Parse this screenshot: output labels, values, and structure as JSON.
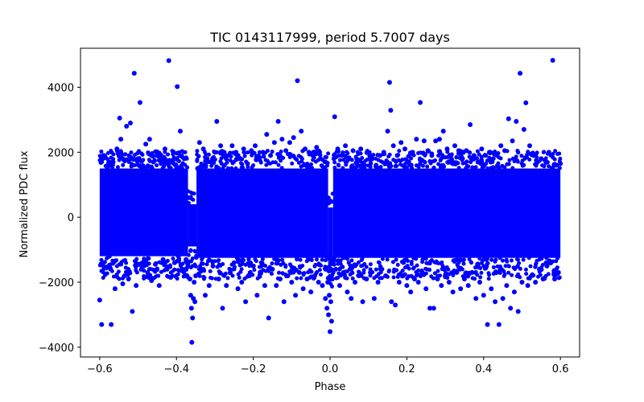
{
  "chart_data": {
    "type": "scatter",
    "title": "TIC 0143117999, period 5.7007 days",
    "xlabel": "Phase",
    "ylabel": "Normalized PDC flux",
    "xlim": [
      -0.65,
      0.65
    ],
    "ylim": [
      -4300,
      5200
    ],
    "x_ticks": [
      {
        "value": -0.6,
        "label": "−0.6"
      },
      {
        "value": -0.4,
        "label": "−0.4"
      },
      {
        "value": -0.2,
        "label": "−0.2"
      },
      {
        "value": 0.0,
        "label": "0.0"
      },
      {
        "value": 0.2,
        "label": "0.2"
      },
      {
        "value": 0.4,
        "label": "0.4"
      },
      {
        "value": 0.6,
        "label": "0.6"
      }
    ],
    "y_ticks": [
      {
        "value": -4000,
        "label": "−4000"
      },
      {
        "value": -2000,
        "label": "−2000"
      },
      {
        "value": 0,
        "label": "0"
      },
      {
        "value": 2000,
        "label": "2000"
      },
      {
        "value": 4000,
        "label": "4000"
      }
    ],
    "grid": false,
    "legend": "none",
    "marker_color": "#0000ff",
    "series": [
      {
        "color": "#0000ff",
        "points": [
          [
            -0.6,
            -2550
          ],
          [
            -0.595,
            -3300
          ],
          [
            -0.59,
            1900
          ],
          [
            -0.585,
            -1750
          ],
          [
            -0.58,
            1500
          ],
          [
            -0.575,
            -1200
          ],
          [
            -0.57,
            -3300
          ],
          [
            -0.565,
            1700
          ],
          [
            -0.56,
            -2200
          ],
          [
            -0.555,
            2100
          ],
          [
            -0.548,
            3050
          ],
          [
            -0.545,
            2400
          ],
          [
            -0.54,
            -2050
          ],
          [
            -0.535,
            -1800
          ],
          [
            -0.53,
            2800
          ],
          [
            -0.525,
            -1900
          ],
          [
            -0.52,
            2900
          ],
          [
            -0.515,
            -2900
          ],
          [
            -0.51,
            4430
          ],
          [
            -0.505,
            -2100
          ],
          [
            -0.5,
            1800
          ],
          [
            -0.495,
            3530
          ],
          [
            -0.49,
            1300
          ],
          [
            -0.485,
            -1500
          ],
          [
            -0.48,
            2250
          ],
          [
            -0.475,
            -1700
          ],
          [
            -0.47,
            2400
          ],
          [
            -0.465,
            -1950
          ],
          [
            -0.46,
            1700
          ],
          [
            -0.455,
            -1450
          ],
          [
            -0.45,
            1900
          ],
          [
            -0.445,
            -2100
          ],
          [
            -0.44,
            1650
          ],
          [
            -0.435,
            -1300
          ],
          [
            -0.43,
            2100
          ],
          [
            -0.425,
            -1600
          ],
          [
            -0.42,
            4820
          ],
          [
            -0.415,
            -1850
          ],
          [
            -0.41,
            1750
          ],
          [
            -0.405,
            -1400
          ],
          [
            -0.4,
            1500
          ],
          [
            -0.398,
            4020
          ],
          [
            -0.395,
            -1200
          ],
          [
            -0.39,
            2650
          ],
          [
            -0.385,
            -1650
          ],
          [
            -0.38,
            1800
          ],
          [
            -0.375,
            -1300
          ],
          [
            -0.372,
            -800
          ],
          [
            -0.37,
            -1500
          ],
          [
            -0.368,
            600
          ],
          [
            -0.365,
            -1900
          ],
          [
            -0.363,
            -2400
          ],
          [
            -0.361,
            -2800
          ],
          [
            -0.36,
            -3850
          ],
          [
            -0.358,
            -3100
          ],
          [
            -0.356,
            -2500
          ],
          [
            -0.354,
            -2000
          ],
          [
            -0.352,
            -2600
          ],
          [
            -0.35,
            -1800
          ],
          [
            -0.348,
            -1200
          ],
          [
            -0.345,
            1500
          ],
          [
            -0.34,
            2300
          ],
          [
            -0.335,
            -1600
          ],
          [
            -0.33,
            2100
          ],
          [
            -0.325,
            -2400
          ],
          [
            -0.32,
            1800
          ],
          [
            -0.315,
            -2100
          ],
          [
            -0.31,
            1700
          ],
          [
            -0.305,
            -1500
          ],
          [
            -0.3,
            2000
          ],
          [
            -0.295,
            2950
          ],
          [
            -0.29,
            -1900
          ],
          [
            -0.285,
            2200
          ],
          [
            -0.28,
            -2800
          ],
          [
            -0.275,
            1600
          ],
          [
            -0.27,
            -2100
          ],
          [
            -0.265,
            1900
          ],
          [
            -0.26,
            -1700
          ],
          [
            -0.255,
            2200
          ],
          [
            -0.25,
            -1400
          ],
          [
            -0.245,
            2000
          ],
          [
            -0.24,
            -2200
          ],
          [
            -0.235,
            1800
          ],
          [
            -0.23,
            -2000
          ],
          [
            -0.225,
            2100
          ],
          [
            -0.22,
            -2600
          ],
          [
            -0.215,
            1650
          ],
          [
            -0.21,
            -1800
          ],
          [
            -0.205,
            2050
          ],
          [
            -0.2,
            -1500
          ],
          [
            -0.195,
            2200
          ],
          [
            -0.19,
            -2400
          ],
          [
            -0.185,
            1800
          ],
          [
            -0.18,
            -1700
          ],
          [
            -0.175,
            2000
          ],
          [
            -0.17,
            -2100
          ],
          [
            -0.165,
            2550
          ],
          [
            -0.16,
            -3100
          ],
          [
            -0.155,
            1900
          ],
          [
            -0.15,
            -1600
          ],
          [
            -0.145,
            2300
          ],
          [
            -0.14,
            -2100
          ],
          [
            -0.135,
            2950
          ],
          [
            -0.13,
            -1900
          ],
          [
            -0.125,
            2400
          ],
          [
            -0.12,
            -2600
          ],
          [
            -0.115,
            2050
          ],
          [
            -0.11,
            -1800
          ],
          [
            -0.105,
            2300
          ],
          [
            -0.1,
            -2000
          ],
          [
            -0.095,
            2450
          ],
          [
            -0.09,
            -2400
          ],
          [
            -0.085,
            4200
          ],
          [
            -0.08,
            -1700
          ],
          [
            -0.075,
            2650
          ],
          [
            -0.07,
            -2200
          ],
          [
            -0.065,
            2100
          ],
          [
            -0.06,
            -1900
          ],
          [
            -0.055,
            2000
          ],
          [
            -0.05,
            -2300
          ],
          [
            -0.045,
            1900
          ],
          [
            -0.04,
            -1800
          ],
          [
            -0.035,
            2150
          ],
          [
            -0.03,
            -2000
          ],
          [
            -0.025,
            1800
          ],
          [
            -0.02,
            -2100
          ],
          [
            -0.015,
            1500
          ],
          [
            -0.012,
            -2500
          ],
          [
            -0.01,
            -1200
          ],
          [
            -0.008,
            -2800
          ],
          [
            -0.006,
            -2000
          ],
          [
            -0.004,
            -3000
          ],
          [
            -0.002,
            -2400
          ],
          [
            0.0,
            -3520
          ],
          [
            0.002,
            -2600
          ],
          [
            0.004,
            -3200
          ],
          [
            0.006,
            -1900
          ],
          [
            0.008,
            -1400
          ],
          [
            0.01,
            1800
          ],
          [
            0.012,
            3090
          ],
          [
            0.015,
            -1600
          ],
          [
            0.02,
            2100
          ],
          [
            0.025,
            -2100
          ],
          [
            0.03,
            1900
          ],
          [
            0.035,
            -1700
          ],
          [
            0.04,
            2200
          ],
          [
            0.045,
            -2300
          ],
          [
            0.05,
            1800
          ],
          [
            0.055,
            -2500
          ],
          [
            0.06,
            2050
          ],
          [
            0.065,
            -2000
          ],
          [
            0.07,
            1700
          ],
          [
            0.075,
            -1800
          ],
          [
            0.08,
            2100
          ],
          [
            0.085,
            -2600
          ],
          [
            0.09,
            1600
          ],
          [
            0.095,
            -1900
          ],
          [
            0.1,
            2000
          ],
          [
            0.105,
            -1700
          ],
          [
            0.11,
            1800
          ],
          [
            0.115,
            -2500
          ],
          [
            0.12,
            1600
          ],
          [
            0.125,
            -2000
          ],
          [
            0.13,
            1900
          ],
          [
            0.135,
            -1600
          ],
          [
            0.14,
            2000
          ],
          [
            0.145,
            -1800
          ],
          [
            0.15,
            2650
          ],
          [
            0.155,
            4150
          ],
          [
            0.158,
            3290
          ],
          [
            0.16,
            -2600
          ],
          [
            0.165,
            2200
          ],
          [
            0.17,
            -2700
          ],
          [
            0.175,
            1900
          ],
          [
            0.18,
            -2000
          ],
          [
            0.185,
            2300
          ],
          [
            0.19,
            -1800
          ],
          [
            0.195,
            2100
          ],
          [
            0.2,
            -2100
          ],
          [
            0.205,
            1700
          ],
          [
            0.21,
            -2300
          ],
          [
            0.215,
            2000
          ],
          [
            0.22,
            -1900
          ],
          [
            0.225,
            2400
          ],
          [
            0.23,
            -2000
          ],
          [
            0.235,
            3530
          ],
          [
            0.24,
            -1700
          ],
          [
            0.245,
            2350
          ],
          [
            0.25,
            -2200
          ],
          [
            0.255,
            2050
          ],
          [
            0.26,
            -2800
          ],
          [
            0.265,
            1900
          ],
          [
            0.27,
            -2800
          ],
          [
            0.275,
            2350
          ],
          [
            0.28,
            -1900
          ],
          [
            0.285,
            2400
          ],
          [
            0.29,
            -2100
          ],
          [
            0.295,
            2650
          ],
          [
            0.3,
            -1800
          ],
          [
            0.305,
            2100
          ],
          [
            0.31,
            -2000
          ],
          [
            0.315,
            1900
          ],
          [
            0.32,
            -2300
          ],
          [
            0.325,
            2200
          ],
          [
            0.33,
            -1700
          ],
          [
            0.335,
            2050
          ],
          [
            0.34,
            -2200
          ],
          [
            0.345,
            1800
          ],
          [
            0.35,
            -1900
          ],
          [
            0.355,
            2050
          ],
          [
            0.36,
            -2100
          ],
          [
            0.365,
            2850
          ],
          [
            0.37,
            -1700
          ],
          [
            0.375,
            1900
          ],
          [
            0.38,
            -2500
          ],
          [
            0.385,
            1700
          ],
          [
            0.39,
            -2000
          ],
          [
            0.395,
            2100
          ],
          [
            0.4,
            -2400
          ],
          [
            0.405,
            1900
          ],
          [
            0.41,
            -3300
          ],
          [
            0.415,
            2000
          ],
          [
            0.42,
            -2200
          ],
          [
            0.425,
            1800
          ],
          [
            0.43,
            -2600
          ],
          [
            0.435,
            1900
          ],
          [
            0.44,
            -3300
          ],
          [
            0.445,
            2200
          ],
          [
            0.45,
            -2500
          ],
          [
            0.455,
            2050
          ],
          [
            0.46,
            -2100
          ],
          [
            0.465,
            3030
          ],
          [
            0.47,
            -2800
          ],
          [
            0.475,
            2350
          ],
          [
            0.48,
            -2300
          ],
          [
            0.485,
            2950
          ],
          [
            0.49,
            -2900
          ],
          [
            0.495,
            4430
          ],
          [
            0.5,
            -2000
          ],
          [
            0.505,
            2700
          ],
          [
            0.51,
            3520
          ],
          [
            0.515,
            -2100
          ],
          [
            0.52,
            2200
          ],
          [
            0.525,
            -1800
          ],
          [
            0.53,
            1900
          ],
          [
            0.535,
            -2000
          ],
          [
            0.54,
            1700
          ],
          [
            0.545,
            -1600
          ],
          [
            0.55,
            1800
          ],
          [
            0.555,
            -1900
          ],
          [
            0.56,
            1750
          ],
          [
            0.565,
            -1500
          ],
          [
            0.57,
            2000
          ],
          [
            0.575,
            -1400
          ],
          [
            0.58,
            4830
          ],
          [
            0.585,
            -1900
          ],
          [
            0.59,
            1600
          ],
          [
            0.595,
            -1700
          ],
          [
            0.6,
            1650
          ]
        ]
      }
    ]
  }
}
